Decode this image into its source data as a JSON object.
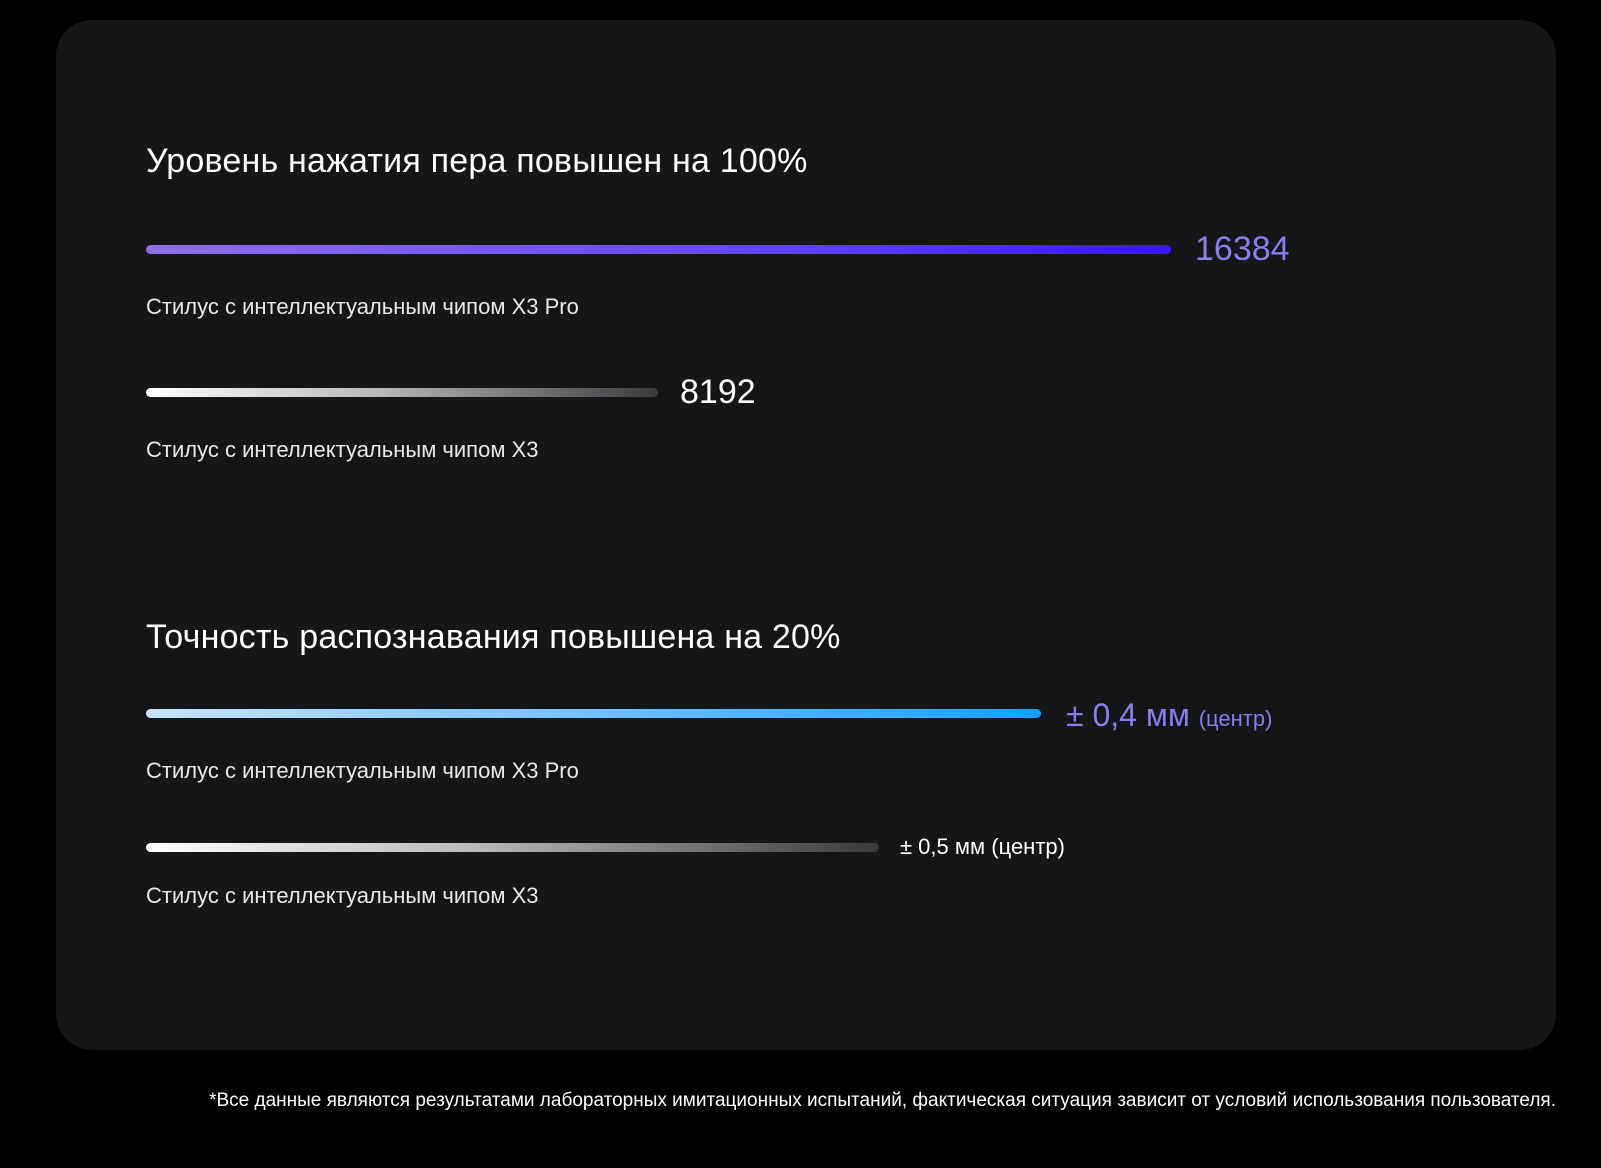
{
  "chart_data": [
    {
      "type": "bar",
      "orientation": "horizontal",
      "title": "Уровень нажатия пера повышен на 100%",
      "categories": [
        "Стилус с интеллектуальным чипом X3 Pro",
        "Стилус с интеллектуальным чипом X3"
      ],
      "values": [
        16384,
        8192
      ],
      "value_labels": [
        "16384",
        "8192"
      ],
      "colors": [
        "#6a4cf0",
        "#ffffff"
      ]
    },
    {
      "type": "bar",
      "orientation": "horizontal",
      "title": "Точность распознавания повышена на 20%",
      "categories": [
        "Стилус с интеллектуальным чипом X3 Pro",
        "Стилус с интеллектуальным чипом X3"
      ],
      "values": [
        0.4,
        0.5
      ],
      "value_labels": [
        {
          "main": "± 0,4 мм",
          "suffix": "(центр)"
        },
        {
          "main": "± 0,5 мм",
          "suffix": "(центр)"
        }
      ],
      "colors": [
        "#1aa3ff",
        "#ffffff"
      ]
    }
  ],
  "footnote": "*Все данные являются результатами лабораторных имитационных испытаний, фактическая ситуация зависит от условий использования пользователя."
}
